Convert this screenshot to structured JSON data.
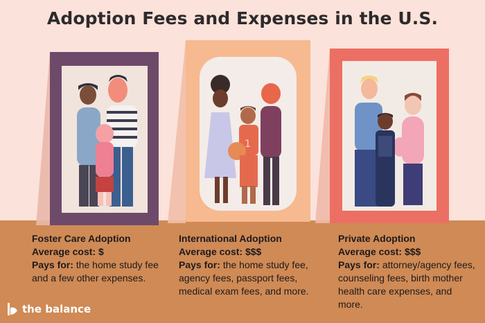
{
  "title": "Adoption Fees and Expenses in the U.S.",
  "sections": [
    {
      "heading": "Foster Care Adoption",
      "cost_label": "Average cost:",
      "cost_value": "$",
      "pays_label": "Pays for:",
      "pays_text": "the home study fee and a few other expenses."
    },
    {
      "heading": "International Adoption",
      "cost_label": "Average cost:",
      "cost_value": "$$$",
      "pays_label": "Pays for:",
      "pays_text": "the home study fee, agency fees, passport fees, medical exam fees, and more."
    },
    {
      "heading": "Private Adoption",
      "cost_label": "Average cost:",
      "cost_value": "$$$",
      "pays_label": "Pays for:",
      "pays_text": "attorney/agency fees, counseling fees, birth mother health care expenses, and more."
    }
  ],
  "brand": {
    "name": "the balance",
    "icon": "balance-logo-icon"
  },
  "colors": {
    "background": "#fbe2da",
    "floor": "#cf8a55",
    "frame_left": "#6e4a6a",
    "frame_center": "#f7b98f",
    "frame_right": "#ec6f63"
  }
}
